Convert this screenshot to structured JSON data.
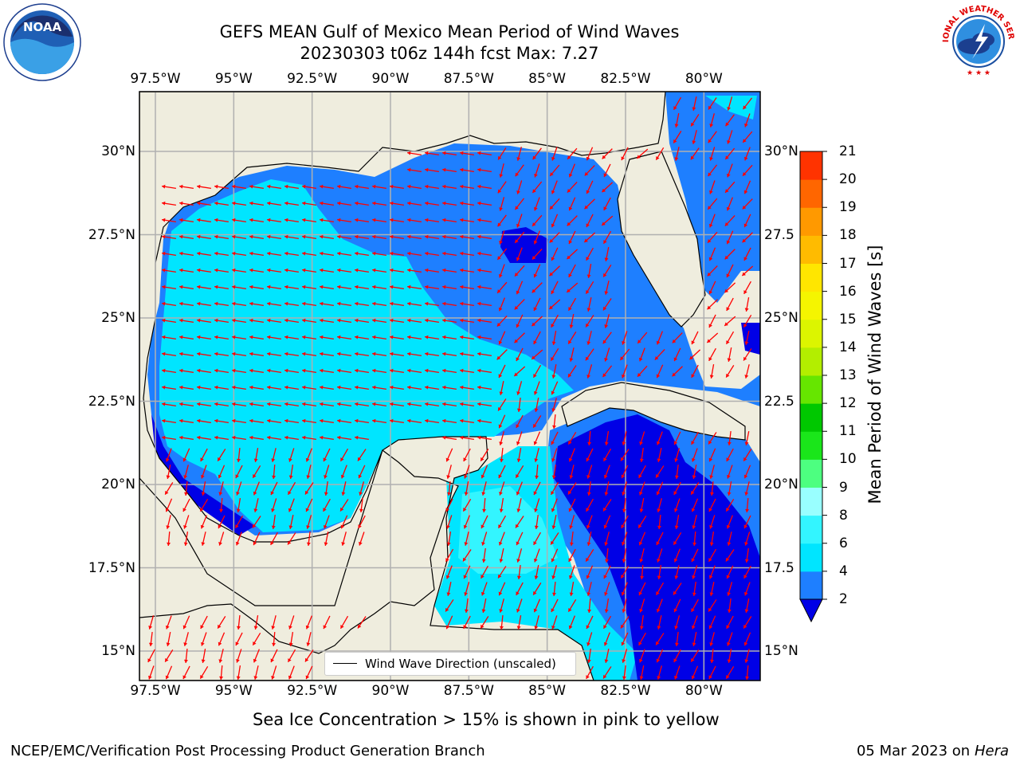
{
  "header": {
    "title_line1": "GEFS MEAN Gulf of Mexico Mean Period of Wind Waves",
    "title_line2": "20230303 t06z 144h fcst   Max: 7.27"
  },
  "map": {
    "lon_ticks": [
      "97.5°W",
      "95°W",
      "92.5°W",
      "90°W",
      "87.5°W",
      "85°W",
      "82.5°W",
      "80°W"
    ],
    "lat_ticks_left": [
      "30°N",
      "27.5°N",
      "25°N",
      "22.5°N",
      "20°N",
      "17.5°N",
      "15°N"
    ],
    "lat_ticks_right": [
      "30°N",
      "27.5",
      "25°N",
      "22.5",
      "20°N",
      "17.5",
      "15°N"
    ],
    "legend_label": "Wind Wave Direction (unscaled)",
    "colors": {
      "land": "#efedde",
      "coast": "#000000",
      "grid": "#b0b0b0",
      "arrow": "#ff0000"
    }
  },
  "colorbar": {
    "label": "Mean Period of Wind Waves [s]",
    "ticks": [
      "2",
      "4",
      "6",
      "8",
      "9",
      "10",
      "11",
      "12",
      "13",
      "14",
      "15",
      "16",
      "17",
      "18",
      "19",
      "20",
      "21"
    ],
    "colors": [
      "#1e7fff",
      "#00e5ff",
      "#33f5ff",
      "#99ffff",
      "#4dff80",
      "#1ae61a",
      "#00c800",
      "#66e600",
      "#b3ee00",
      "#dcf500",
      "#f5f500",
      "#ffe600",
      "#ffbb00",
      "#ff9900",
      "#ff6600",
      "#ff3300",
      "#ff0000"
    ],
    "extend_color": "#0000e6"
  },
  "footer": {
    "note": "Sea Ice Concentration > 15% is shown in pink to yellow",
    "left": "NCEP/EMC/Verification Post Processing Product Generation Branch",
    "right_date": "05 Mar 2023 on",
    "right_host": "Hera"
  },
  "logos": {
    "noaa_text": "NOAA",
    "nws_text": "NATIONAL WEATHER SERVICE"
  }
}
